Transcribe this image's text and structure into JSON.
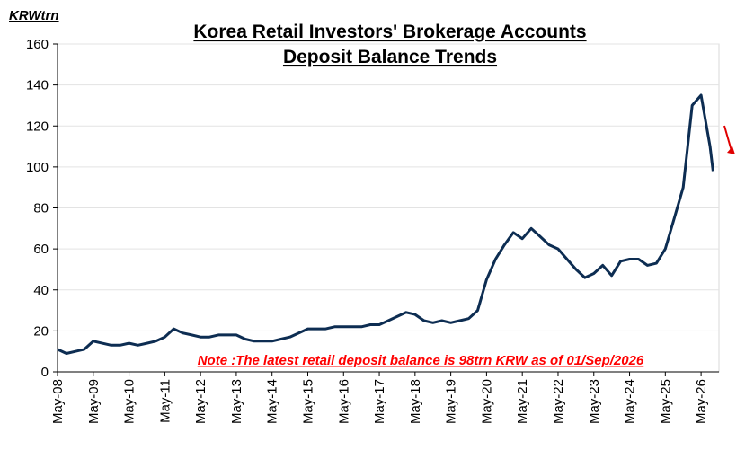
{
  "chart_data": {
    "type": "line",
    "title": [
      "Korea Retail Investors' Brokerage Accounts",
      "Deposit Balance Trends"
    ],
    "y_unit": "KRWtrn",
    "annotation": "Note :The latest retail deposit balance  is 98trn KRW as of 01/Sep/2026",
    "x": [
      "2008-05",
      "2008-08",
      "2008-11",
      "2009-02",
      "2009-05",
      "2009-08",
      "2009-11",
      "2010-02",
      "2010-05",
      "2010-08",
      "2010-11",
      "2011-02",
      "2011-05",
      "2011-08",
      "2011-11",
      "2012-02",
      "2012-05",
      "2012-08",
      "2012-11",
      "2013-02",
      "2013-05",
      "2013-08",
      "2013-11",
      "2014-02",
      "2014-05",
      "2014-08",
      "2014-11",
      "2015-02",
      "2015-05",
      "2015-08",
      "2015-11",
      "2016-02",
      "2016-05",
      "2016-08",
      "2016-11",
      "2017-02",
      "2017-05",
      "2017-08",
      "2017-11",
      "2018-02",
      "2018-05",
      "2018-08",
      "2018-11",
      "2019-02",
      "2019-05",
      "2019-08",
      "2019-11",
      "2020-02",
      "2020-05",
      "2020-08",
      "2020-11",
      "2021-02",
      "2021-05",
      "2021-08",
      "2021-11",
      "2022-02",
      "2022-05",
      "2022-08",
      "2022-11",
      "2023-02",
      "2023-05",
      "2023-08",
      "2023-11",
      "2024-02",
      "2024-05",
      "2024-08",
      "2024-11",
      "2025-02",
      "2025-05",
      "2025-08",
      "2025-11",
      "2026-02",
      "2026-05",
      "2026-08",
      "2026-09"
    ],
    "series": [
      {
        "name": "Deposit balance",
        "color": "#0d2d52",
        "values": [
          11,
          9,
          10,
          11,
          15,
          14,
          13,
          13,
          14,
          13,
          14,
          15,
          17,
          21,
          19,
          18,
          17,
          17,
          18,
          18,
          18,
          16,
          15,
          15,
          15,
          16,
          17,
          19,
          21,
          21,
          21,
          22,
          22,
          22,
          22,
          23,
          23,
          25,
          27,
          29,
          28,
          25,
          24,
          25,
          24,
          25,
          26,
          30,
          45,
          55,
          62,
          68,
          65,
          70,
          66,
          62,
          60,
          55,
          50,
          46,
          48,
          52,
          47,
          54,
          55,
          55,
          52,
          53,
          60,
          75,
          90,
          130,
          135,
          110,
          98
        ]
      }
    ],
    "xlim": [
      "2008-05",
      "2026-11"
    ],
    "xticks": [
      {
        "value": "2008-05",
        "label": "May-08"
      },
      {
        "value": "2009-05",
        "label": "May-09"
      },
      {
        "value": "2010-05",
        "label": "May-10"
      },
      {
        "value": "2011-05",
        "label": "May-11"
      },
      {
        "value": "2012-05",
        "label": "May-12"
      },
      {
        "value": "2013-05",
        "label": "May-13"
      },
      {
        "value": "2014-05",
        "label": "May-14"
      },
      {
        "value": "2015-05",
        "label": "May-15"
      },
      {
        "value": "2016-05",
        "label": "May-16"
      },
      {
        "value": "2017-05",
        "label": "May-17"
      },
      {
        "value": "2018-05",
        "label": "May-18"
      },
      {
        "value": "2019-05",
        "label": "May-19"
      },
      {
        "value": "2020-05",
        "label": "May-20"
      },
      {
        "value": "2021-05",
        "label": "May-21"
      },
      {
        "value": "2022-05",
        "label": "May-22"
      },
      {
        "value": "2023-05",
        "label": "May-23"
      },
      {
        "value": "2024-05",
        "label": "May-24"
      },
      {
        "value": "2025-05",
        "label": "May-25"
      },
      {
        "value": "2026-05",
        "label": "May-26"
      }
    ],
    "ylim": [
      0,
      160
    ],
    "yticks": [
      0,
      20,
      40,
      60,
      80,
      100,
      120,
      140,
      160
    ],
    "grid": true
  }
}
